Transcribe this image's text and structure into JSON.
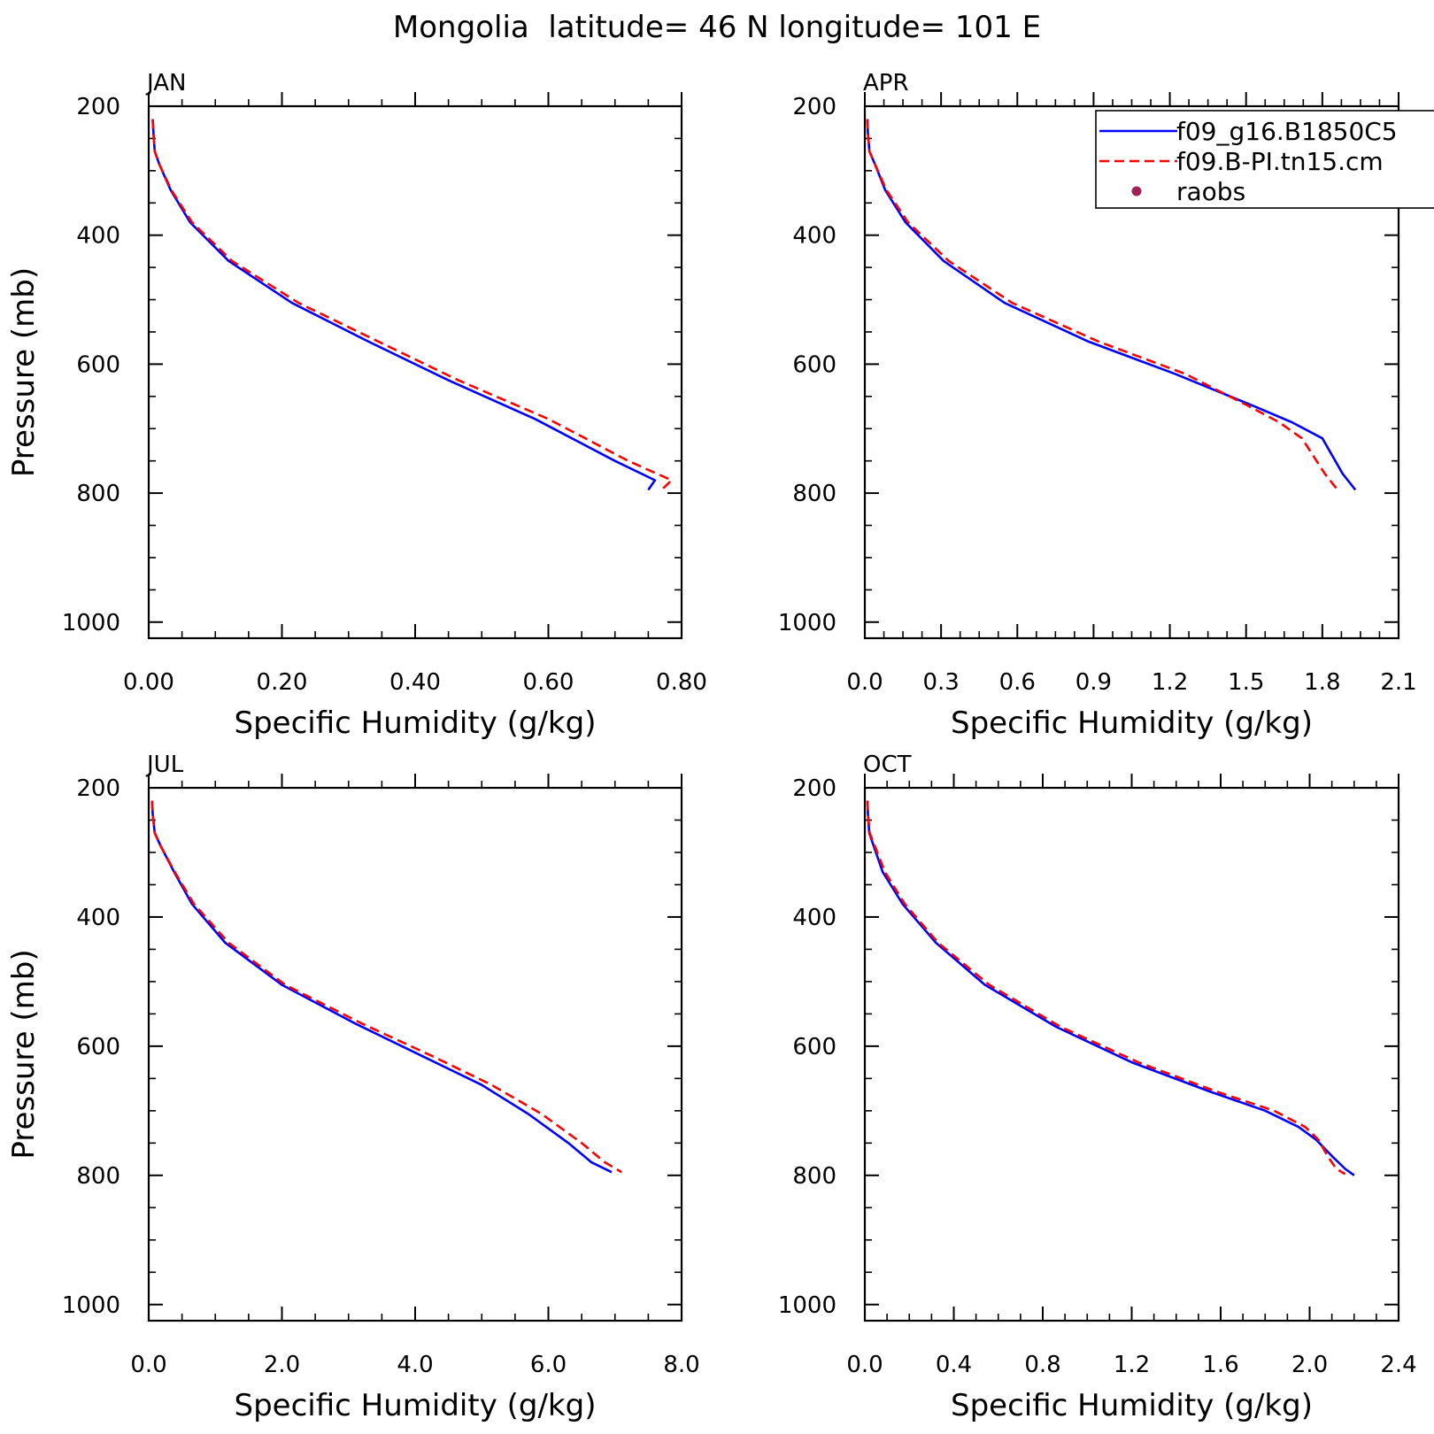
{
  "figure": {
    "title": "Mongolia  latitude= 46 N longitude= 101 E"
  },
  "legend": {
    "placement": "top-right",
    "entries": [
      {
        "label": "f09_g16.B1850C5",
        "color": "#0000ff",
        "style": "solid"
      },
      {
        "label": "f09.B-PI.tn15.cm",
        "color": "#ff0000",
        "style": "dashed"
      },
      {
        "label": "raobs",
        "color": "#a0205a",
        "style": "marker"
      }
    ]
  },
  "chart_data": [
    {
      "type": "line",
      "panel_label": "JAN",
      "xlabel": "Specific Humidity (g/kg)",
      "ylabel": "Pressure (mb)",
      "xlim": [
        0,
        0.8
      ],
      "ylim": [
        200,
        1025
      ],
      "y_inverted": true,
      "xticks": [
        "0.00",
        "0.20",
        "0.40",
        "0.60",
        "0.80"
      ],
      "xtick_values": [
        0,
        0.2,
        0.4,
        0.6,
        0.8
      ],
      "yticks": [
        "200",
        "400",
        "600",
        "800",
        "1000"
      ],
      "ytick_values": [
        200,
        400,
        600,
        800,
        1000
      ],
      "series": [
        {
          "name": "f09_g16.B1850C5",
          "color": "#0000ff",
          "style": "solid",
          "x": [
            0.006,
            0.007,
            0.009,
            0.016,
            0.033,
            0.062,
            0.12,
            0.215,
            0.33,
            0.45,
            0.58,
            0.7,
            0.76,
            0.75
          ],
          "y": [
            220,
            240,
            270,
            290,
            330,
            380,
            440,
            505,
            565,
            625,
            685,
            750,
            780,
            795
          ]
        },
        {
          "name": "f09.B-PI.tn15.cm",
          "color": "#ff0000",
          "style": "dashed",
          "x": [
            0.006,
            0.007,
            0.009,
            0.016,
            0.034,
            0.065,
            0.125,
            0.225,
            0.345,
            0.465,
            0.6,
            0.72,
            0.785,
            0.77
          ],
          "y": [
            220,
            240,
            270,
            290,
            330,
            380,
            440,
            505,
            565,
            625,
            685,
            750,
            780,
            795
          ]
        }
      ]
    },
    {
      "type": "line",
      "panel_label": "APR",
      "xlabel": "Specific Humidity (g/kg)",
      "ylabel": "",
      "xlim": [
        0,
        2.1
      ],
      "ylim": [
        200,
        1025
      ],
      "y_inverted": true,
      "xticks": [
        "0.0",
        "0.3",
        "0.6",
        "0.9",
        "1.2",
        "1.5",
        "1.8",
        "2.1"
      ],
      "xtick_values": [
        0,
        0.3,
        0.6,
        0.9,
        1.2,
        1.5,
        1.8,
        2.1
      ],
      "yticks": [
        "200",
        "400",
        "600",
        "800",
        "1000"
      ],
      "ytick_values": [
        200,
        400,
        600,
        800,
        1000
      ],
      "series": [
        {
          "name": "f09_g16.B1850C5",
          "color": "#0000ff",
          "style": "solid",
          "x": [
            0.01,
            0.012,
            0.018,
            0.04,
            0.08,
            0.16,
            0.31,
            0.55,
            0.88,
            1.22,
            1.53,
            1.68,
            1.8,
            1.88,
            1.93
          ],
          "y": [
            220,
            240,
            270,
            290,
            330,
            380,
            440,
            505,
            565,
            615,
            665,
            690,
            715,
            770,
            795
          ]
        },
        {
          "name": "f09.B-PI.tn15.cm",
          "color": "#ff0000",
          "style": "dashed",
          "x": [
            0.01,
            0.012,
            0.018,
            0.04,
            0.085,
            0.17,
            0.33,
            0.58,
            0.92,
            1.26,
            1.51,
            1.63,
            1.72,
            1.81,
            1.86
          ],
          "y": [
            220,
            240,
            270,
            290,
            330,
            380,
            440,
            505,
            565,
            615,
            665,
            690,
            715,
            770,
            795
          ]
        }
      ]
    },
    {
      "type": "line",
      "panel_label": "JUL",
      "xlabel": "Specific Humidity (g/kg)",
      "ylabel": "Pressure (mb)",
      "xlim": [
        0,
        8.0
      ],
      "ylim": [
        200,
        1025
      ],
      "y_inverted": true,
      "xticks": [
        "0.0",
        "2.0",
        "4.0",
        "6.0",
        "8.0"
      ],
      "xtick_values": [
        0,
        2,
        4,
        6,
        8
      ],
      "yticks": [
        "200",
        "400",
        "600",
        "800",
        "1000"
      ],
      "ytick_values": [
        200,
        400,
        600,
        800,
        1000
      ],
      "series": [
        {
          "name": "f09_g16.B1850C5",
          "color": "#0000ff",
          "style": "solid",
          "x": [
            0.05,
            0.06,
            0.09,
            0.18,
            0.38,
            0.65,
            1.15,
            2.0,
            3.1,
            4.1,
            5.0,
            5.7,
            6.3,
            6.65,
            6.95
          ],
          "y": [
            220,
            240,
            270,
            290,
            330,
            380,
            440,
            505,
            565,
            615,
            660,
            705,
            750,
            780,
            795
          ]
        },
        {
          "name": "f09.B-PI.tn15.cm",
          "color": "#ff0000",
          "style": "dashed",
          "x": [
            0.05,
            0.06,
            0.09,
            0.18,
            0.39,
            0.68,
            1.2,
            2.05,
            3.2,
            4.25,
            5.15,
            5.9,
            6.5,
            6.85,
            7.1
          ],
          "y": [
            220,
            240,
            270,
            290,
            330,
            380,
            440,
            505,
            565,
            615,
            660,
            705,
            750,
            780,
            795
          ]
        }
      ]
    },
    {
      "type": "line",
      "panel_label": "OCT",
      "xlabel": "Specific Humidity (g/kg)",
      "ylabel": "",
      "xlim": [
        0,
        2.4
      ],
      "ylim": [
        200,
        1025
      ],
      "y_inverted": true,
      "xticks": [
        "0.0",
        "0.4",
        "0.8",
        "1.2",
        "1.6",
        "2.0",
        "2.4"
      ],
      "xtick_values": [
        0,
        0.4,
        0.8,
        1.2,
        1.6,
        2.0,
        2.4
      ],
      "yticks": [
        "200",
        "400",
        "600",
        "800",
        "1000"
      ],
      "ytick_values": [
        200,
        400,
        600,
        800,
        1000
      ],
      "series": [
        {
          "name": "f09_g16.B1850C5",
          "color": "#0000ff",
          "style": "solid",
          "x": [
            0.012,
            0.014,
            0.02,
            0.04,
            0.08,
            0.17,
            0.32,
            0.54,
            0.86,
            1.2,
            1.55,
            1.8,
            1.95,
            2.03,
            2.1,
            2.16,
            2.2
          ],
          "y": [
            220,
            240,
            270,
            290,
            330,
            380,
            440,
            505,
            570,
            625,
            670,
            700,
            725,
            745,
            770,
            790,
            800
          ]
        },
        {
          "name": "f09.B-PI.tn15.cm",
          "color": "#ff0000",
          "style": "dashed",
          "x": [
            0.012,
            0.014,
            0.022,
            0.045,
            0.09,
            0.18,
            0.33,
            0.56,
            0.88,
            1.23,
            1.58,
            1.84,
            1.98,
            2.04,
            2.08,
            2.12,
            2.16
          ],
          "y": [
            220,
            240,
            270,
            290,
            330,
            380,
            440,
            505,
            570,
            625,
            670,
            700,
            725,
            745,
            770,
            790,
            798
          ]
        }
      ]
    }
  ]
}
